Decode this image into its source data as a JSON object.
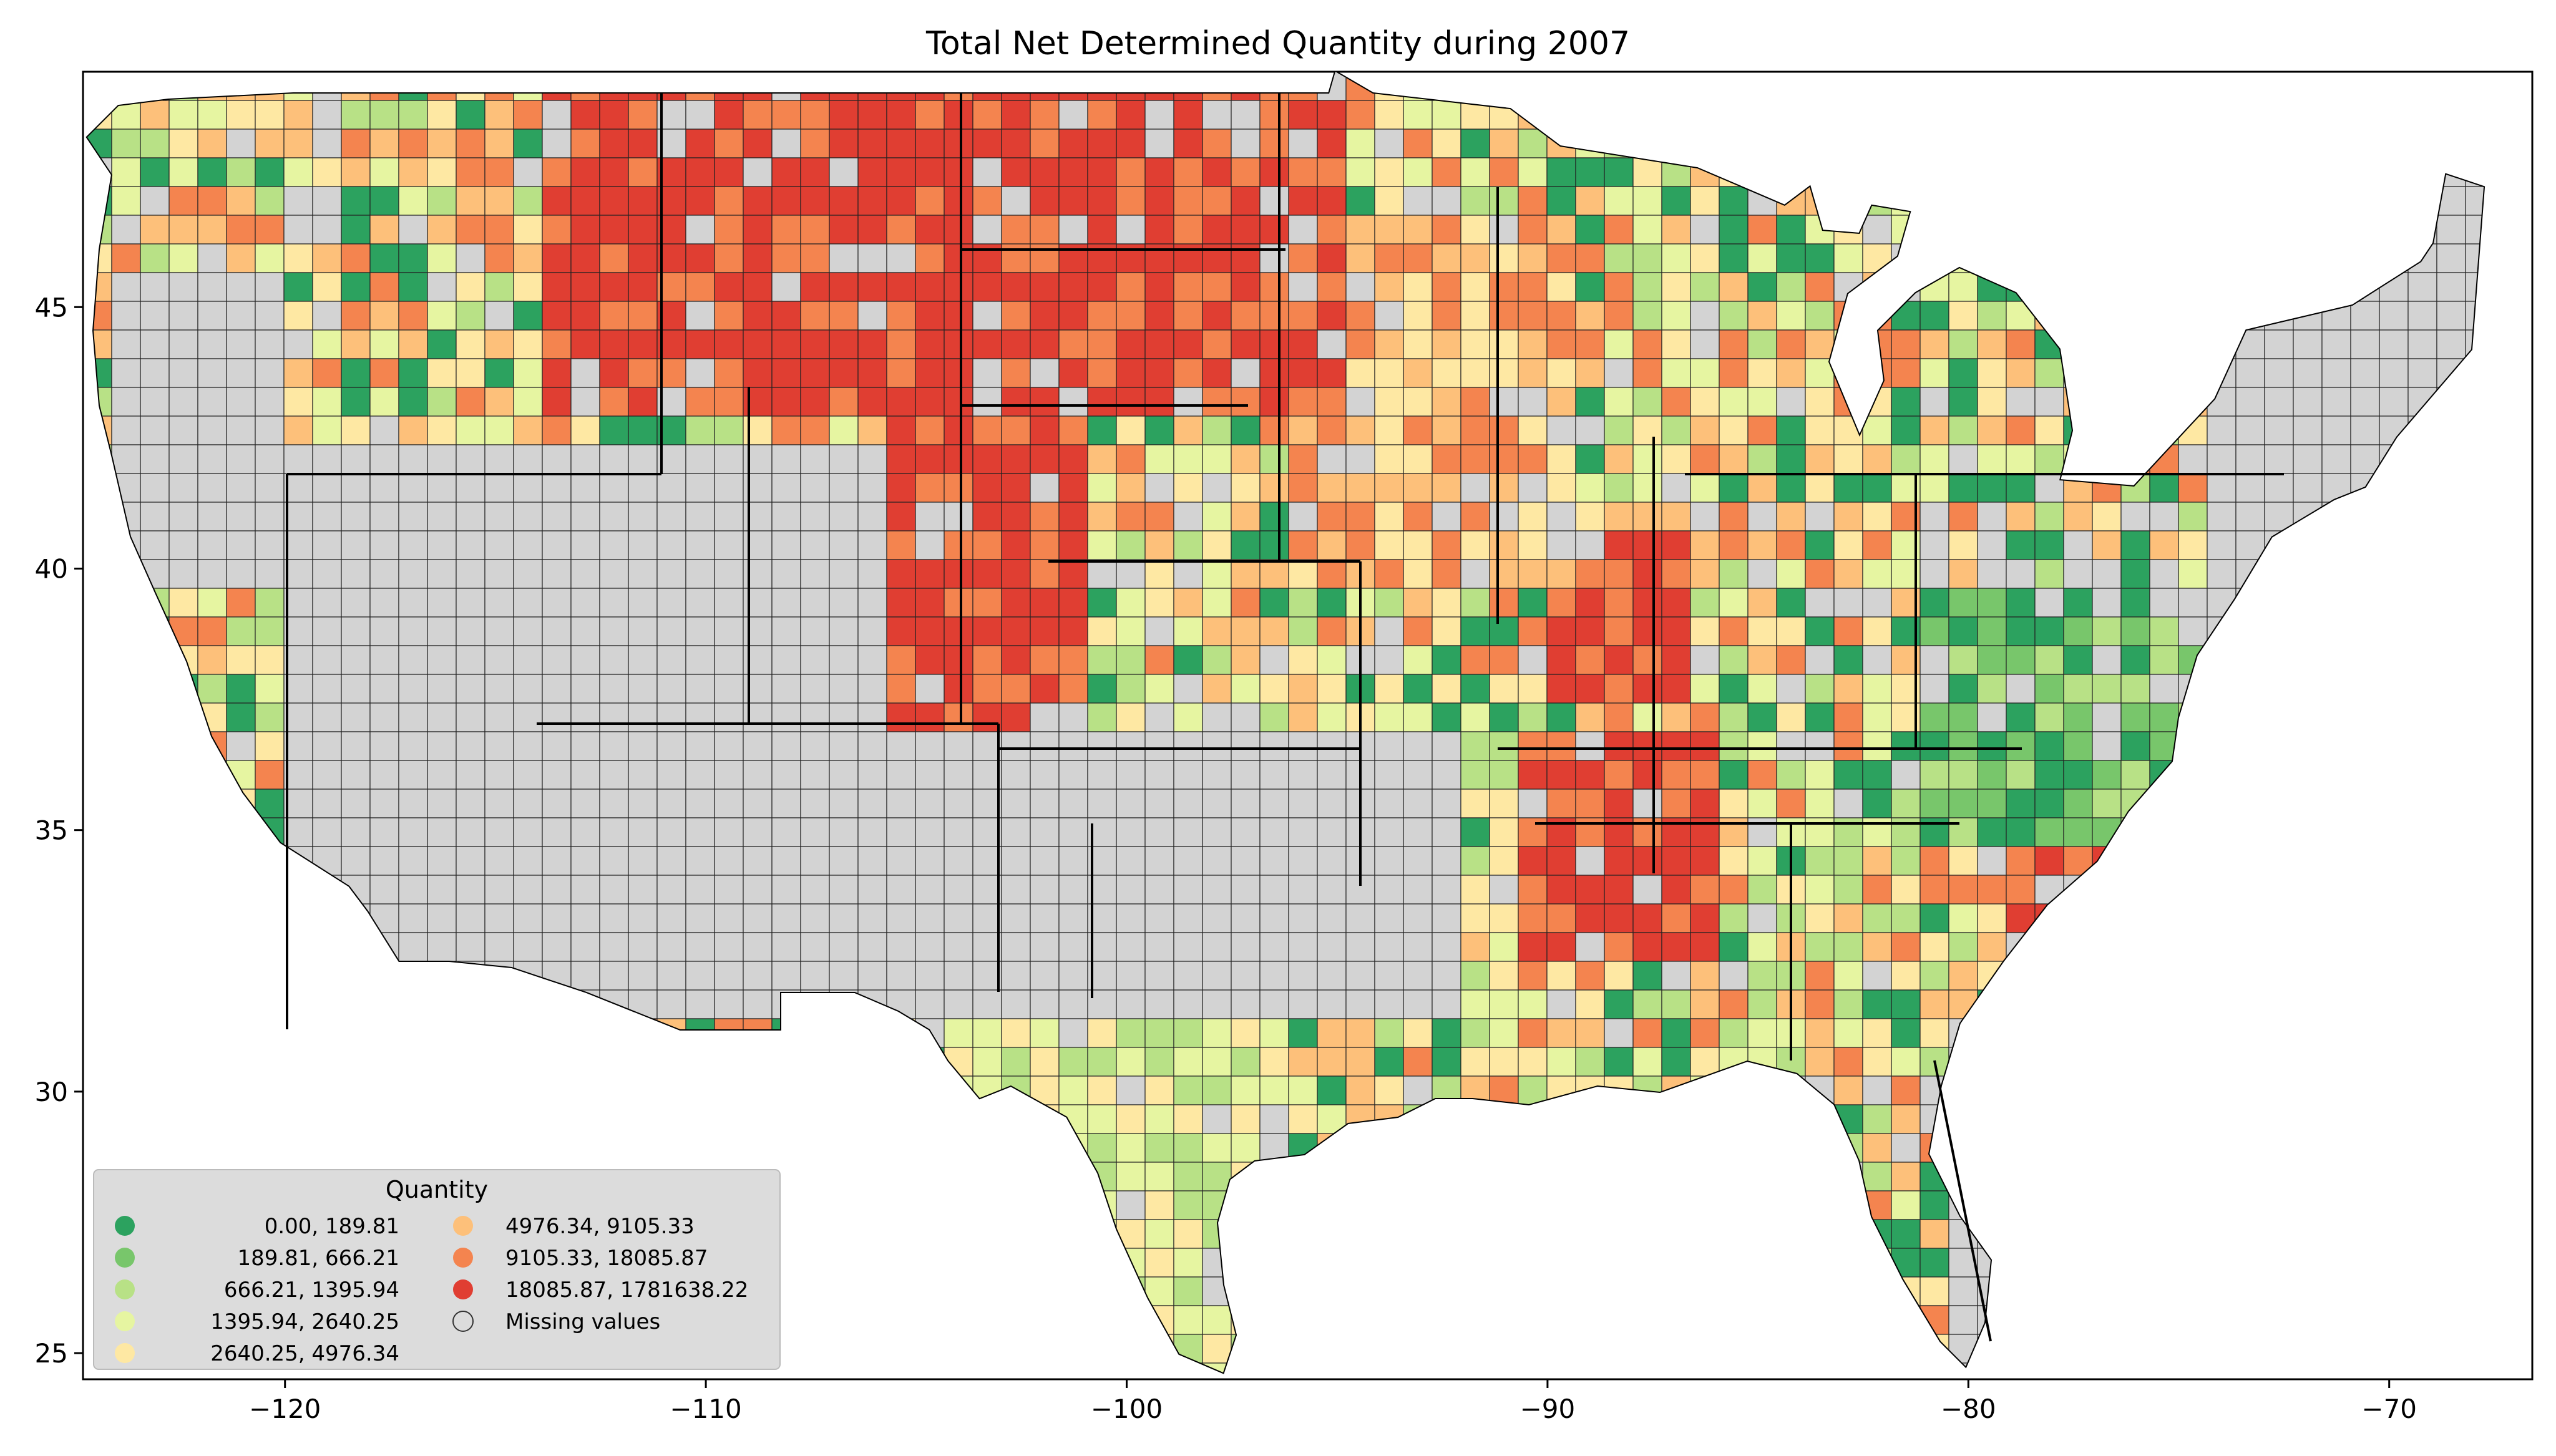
{
  "title": "Total Net Determined Quantity during 2007",
  "axes": {
    "x_ticks": [
      "−120",
      "−110",
      "−100",
      "−90",
      "−80",
      "−70"
    ],
    "x_values": [
      -120,
      -110,
      -100,
      -90,
      -80,
      -70
    ],
    "y_ticks": [
      "45",
      "40",
      "35",
      "30",
      "25"
    ],
    "y_values": [
      45,
      40,
      35,
      30,
      25
    ],
    "xlim": [
      -124.8,
      -66.6
    ],
    "ylim": [
      24.5,
      49.5
    ]
  },
  "legend": {
    "title": "Quantity",
    "placement": "lower-left",
    "items": [
      {
        "label": "0.00,     189.81",
        "color": "#2ca25f"
      },
      {
        "label": "189.81,     666.21",
        "color": "#78c66b"
      },
      {
        "label": "666.21,    1395.94",
        "color": "#b8e186"
      },
      {
        "label": "1395.94,    2640.25",
        "color": "#e6f5a1"
      },
      {
        "label": "2640.25,    4976.34",
        "color": "#fee8a3"
      },
      {
        "label": "4976.34,    9105.33",
        "color": "#fdc07a"
      },
      {
        "label": "9105.33,   18085.87",
        "color": "#f4844f"
      },
      {
        "label": "18085.87, 1781638.22",
        "color": "#e03e32"
      },
      {
        "label": "Missing values",
        "color": "#d3d3d3"
      }
    ]
  },
  "colors": {
    "missing": "#d3d3d3",
    "ocean": "#ffffff",
    "border": "#000000"
  }
}
